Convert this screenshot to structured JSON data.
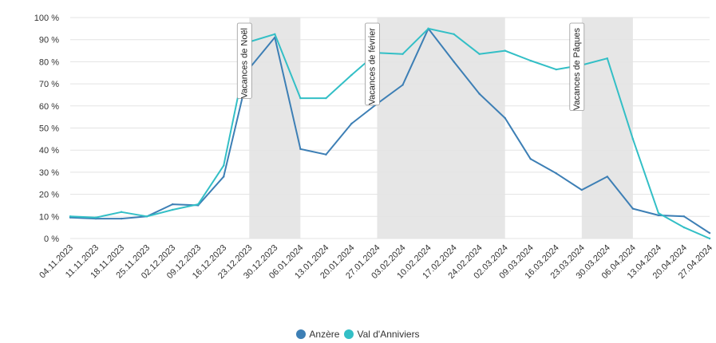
{
  "chart_data": {
    "type": "line",
    "title": "",
    "xlabel": "",
    "ylabel": "",
    "ylim": [
      0,
      100
    ],
    "y_ticks": [
      "0 %",
      "10 %",
      "20 %",
      "30 %",
      "40 %",
      "50 %",
      "60 %",
      "70 %",
      "80 %",
      "90 %",
      "100 %"
    ],
    "categories": [
      "04.11.2023",
      "11.11.2023",
      "18.11.2023",
      "25.11.2023",
      "02.12.2023",
      "09.12.2023",
      "16.12.2023",
      "23.12.2023",
      "30.12.2023",
      "06.01.2024",
      "13.01.2024",
      "20.01.2024",
      "27.01.2024",
      "03.02.2024",
      "10.02.2024",
      "17.02.2024",
      "24.02.2024",
      "02.03.2024",
      "09.03.2024",
      "16.03.2024",
      "23.03.2024",
      "30.03.2024",
      "06.04.2024",
      "13.04.2024",
      "20.04.2024",
      "27.04.2024"
    ],
    "series": [
      {
        "name": "Anzère",
        "color": "#3d7fb5",
        "values": [
          9.5,
          9,
          9,
          10,
          15.5,
          15,
          28,
          77,
          91,
          40.5,
          38,
          52,
          61,
          69.5,
          95,
          80,
          65.5,
          54.5,
          36,
          29.5,
          22,
          28,
          13.5,
          10.5,
          10,
          2.5
        ]
      },
      {
        "name": "Val d'Anniviers",
        "color": "#33bfc6",
        "values": [
          10,
          9.5,
          12,
          10,
          13,
          15.5,
          33,
          89,
          92.5,
          63.5,
          63.5,
          74,
          84,
          83.5,
          95,
          92.5,
          83.5,
          85,
          80.5,
          76.5,
          78.5,
          81.5,
          45,
          11.5,
          5,
          0
        ]
      }
    ],
    "bands": [
      {
        "label": "Vacances de Noël",
        "from": "23.12.2023",
        "to": "06.01.2024"
      },
      {
        "label": "Vacances de février",
        "from": "27.01.2024",
        "to": "02.03.2024"
      },
      {
        "label": "Vacances de Pâques",
        "from": "23.03.2024",
        "to": "06.04.2024"
      }
    ],
    "grid": true,
    "legend_position": "bottom"
  }
}
